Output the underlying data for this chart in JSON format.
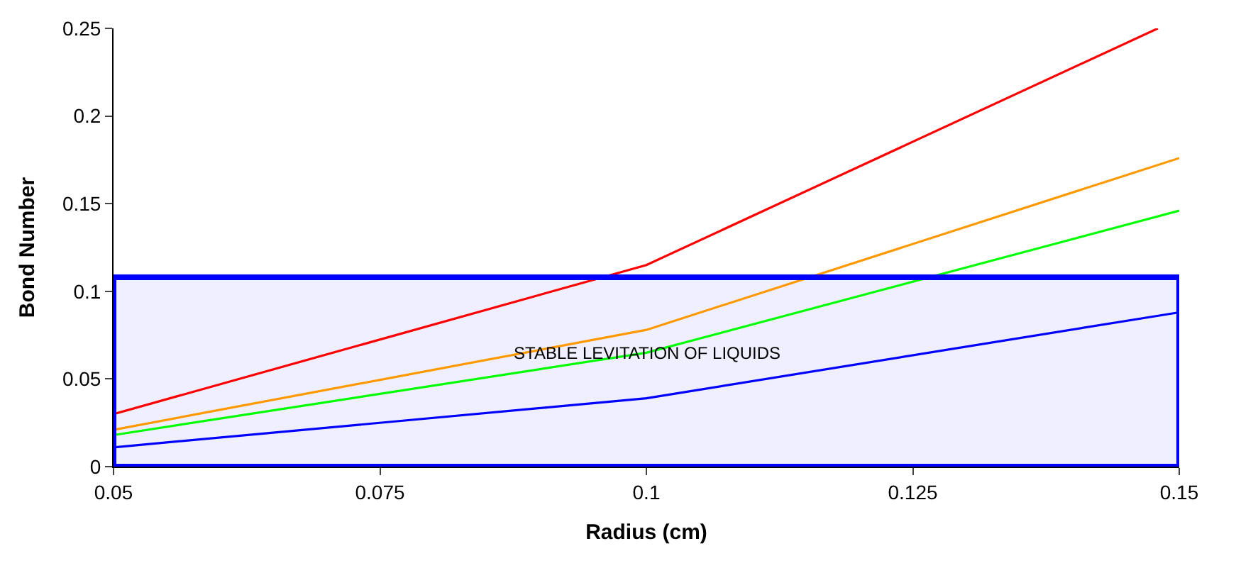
{
  "chart_data": {
    "type": "line",
    "xlabel": "Radius (cm)",
    "ylabel": "Bond Number",
    "x": [
      0.05,
      0.1,
      0.15
    ],
    "series": [
      {
        "color": "#ff0000",
        "x": [
          0.05,
          0.1,
          0.148
        ],
        "values": [
          0.03,
          0.115,
          0.25
        ]
      },
      {
        "color": "#ff9900",
        "values": [
          0.021,
          0.078,
          0.176
        ]
      },
      {
        "color": "#00ff00",
        "values": [
          0.018,
          0.065,
          0.146
        ]
      },
      {
        "color": "#0000ff",
        "values": [
          0.011,
          0.039,
          0.088
        ]
      }
    ],
    "xlim": [
      0.05,
      0.15
    ],
    "xticks": [
      0.05,
      0.075,
      0.1,
      0.125,
      0.15
    ],
    "ylim": [
      0,
      0.25
    ],
    "yticks": [
      0,
      0.05,
      0.1,
      0.15,
      0.2,
      0.25
    ],
    "bands": [
      {
        "axis": "y",
        "from": 0,
        "to": 0.108,
        "label": "STABLE LEVITATION OF LIQUIDS",
        "color": "#0000ff"
      }
    ],
    "grid": false,
    "marker": "none",
    "line_style": "solid"
  }
}
